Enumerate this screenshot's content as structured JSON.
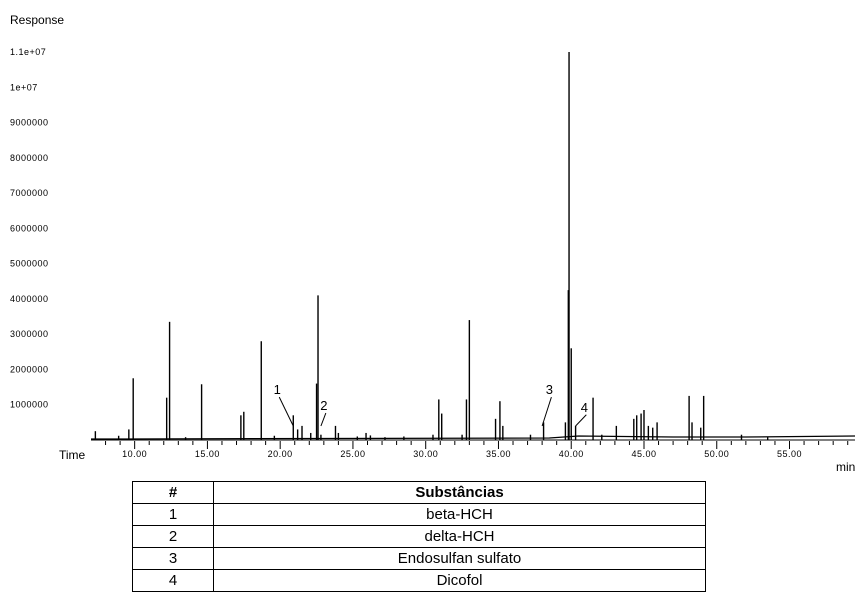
{
  "chart_data": {
    "type": "line",
    "ylabel": "Response",
    "xlabel_left": "Time",
    "xunit": "min",
    "xlim": [
      7.0,
      59.5
    ],
    "ylim": [
      0,
      11000000
    ],
    "yticks": [
      {
        "value": 1000000,
        "label": "1000000"
      },
      {
        "value": 2000000,
        "label": "2000000"
      },
      {
        "value": 3000000,
        "label": "3000000"
      },
      {
        "value": 4000000,
        "label": "4000000"
      },
      {
        "value": 5000000,
        "label": "5000000"
      },
      {
        "value": 6000000,
        "label": "6000000"
      },
      {
        "value": 7000000,
        "label": "7000000"
      },
      {
        "value": 8000000,
        "label": "8000000"
      },
      {
        "value": 9000000,
        "label": "9000000"
      },
      {
        "value": 10000000,
        "label": "1e+07"
      },
      {
        "value": 11000000,
        "label": "1.1e+07"
      }
    ],
    "xticks": [
      {
        "value": 10,
        "label": "10.00"
      },
      {
        "value": 15,
        "label": "15.00"
      },
      {
        "value": 20,
        "label": "20.00"
      },
      {
        "value": 25,
        "label": "25.00"
      },
      {
        "value": 30,
        "label": "30.00"
      },
      {
        "value": 35,
        "label": "35.00"
      },
      {
        "value": 40,
        "label": "40.00"
      },
      {
        "value": 45,
        "label": "45.00"
      },
      {
        "value": 50,
        "label": "50.00"
      },
      {
        "value": 55,
        "label": "55.00"
      }
    ],
    "peaks": [
      {
        "t": 7.3,
        "h": 250000
      },
      {
        "t": 8.9,
        "h": 120000
      },
      {
        "t": 9.6,
        "h": 300000
      },
      {
        "t": 9.9,
        "h": 1750000
      },
      {
        "t": 12.2,
        "h": 1200000
      },
      {
        "t": 12.4,
        "h": 3350000
      },
      {
        "t": 13.5,
        "h": 80000
      },
      {
        "t": 14.6,
        "h": 1580000
      },
      {
        "t": 17.3,
        "h": 700000
      },
      {
        "t": 17.5,
        "h": 800000
      },
      {
        "t": 18.7,
        "h": 2800000
      },
      {
        "t": 19.6,
        "h": 120000
      },
      {
        "t": 20.9,
        "h": 700000
      },
      {
        "t": 21.2,
        "h": 300000
      },
      {
        "t": 21.5,
        "h": 400000
      },
      {
        "t": 22.1,
        "h": 200000
      },
      {
        "t": 22.5,
        "h": 1600000
      },
      {
        "t": 22.6,
        "h": 4100000
      },
      {
        "t": 22.8,
        "h": 150000
      },
      {
        "t": 23.8,
        "h": 400000
      },
      {
        "t": 24.0,
        "h": 200000
      },
      {
        "t": 25.3,
        "h": 100000
      },
      {
        "t": 25.9,
        "h": 200000
      },
      {
        "t": 26.2,
        "h": 130000
      },
      {
        "t": 27.2,
        "h": 80000
      },
      {
        "t": 28.5,
        "h": 100000
      },
      {
        "t": 30.5,
        "h": 150000
      },
      {
        "t": 30.9,
        "h": 1150000
      },
      {
        "t": 31.1,
        "h": 750000
      },
      {
        "t": 32.5,
        "h": 150000
      },
      {
        "t": 32.8,
        "h": 1150000
      },
      {
        "t": 33.0,
        "h": 3400000
      },
      {
        "t": 34.8,
        "h": 600000
      },
      {
        "t": 35.1,
        "h": 1100000
      },
      {
        "t": 35.3,
        "h": 400000
      },
      {
        "t": 37.2,
        "h": 150000
      },
      {
        "t": 38.1,
        "h": 500000
      },
      {
        "t": 39.6,
        "h": 500000
      },
      {
        "t": 39.8,
        "h": 4250000
      },
      {
        "t": 39.85,
        "h": 11000000
      },
      {
        "t": 40.0,
        "h": 2600000
      },
      {
        "t": 40.3,
        "h": 400000
      },
      {
        "t": 41.5,
        "h": 1200000
      },
      {
        "t": 42.1,
        "h": 150000
      },
      {
        "t": 43.1,
        "h": 400000
      },
      {
        "t": 44.3,
        "h": 600000
      },
      {
        "t": 44.5,
        "h": 700000
      },
      {
        "t": 44.8,
        "h": 750000
      },
      {
        "t": 45.0,
        "h": 850000
      },
      {
        "t": 45.3,
        "h": 400000
      },
      {
        "t": 45.6,
        "h": 350000
      },
      {
        "t": 45.9,
        "h": 500000
      },
      {
        "t": 48.1,
        "h": 1250000
      },
      {
        "t": 48.3,
        "h": 500000
      },
      {
        "t": 48.9,
        "h": 350000
      },
      {
        "t": 49.1,
        "h": 1250000
      },
      {
        "t": 51.7,
        "h": 150000
      },
      {
        "t": 53.5,
        "h": 80000
      }
    ],
    "annotations": [
      {
        "label": "1",
        "t": 20.9,
        "text_t": 19.8,
        "text_y": 1300000
      },
      {
        "label": "2",
        "t": 22.8,
        "text_t": 23.0,
        "text_y": 850000
      },
      {
        "label": "3",
        "t": 38.0,
        "text_t": 38.5,
        "text_y": 1300000
      },
      {
        "label": "4",
        "t": 40.3,
        "text_t": 40.9,
        "text_y": 800000
      }
    ]
  },
  "table": {
    "headers": [
      "#",
      "Substâncias"
    ],
    "rows": [
      {
        "num": "1",
        "name": "beta-HCH"
      },
      {
        "num": "2",
        "name": "delta-HCH"
      },
      {
        "num": "3",
        "name": "Endosulfan sulfato"
      },
      {
        "num": "4",
        "name": "Dicofol"
      }
    ]
  }
}
